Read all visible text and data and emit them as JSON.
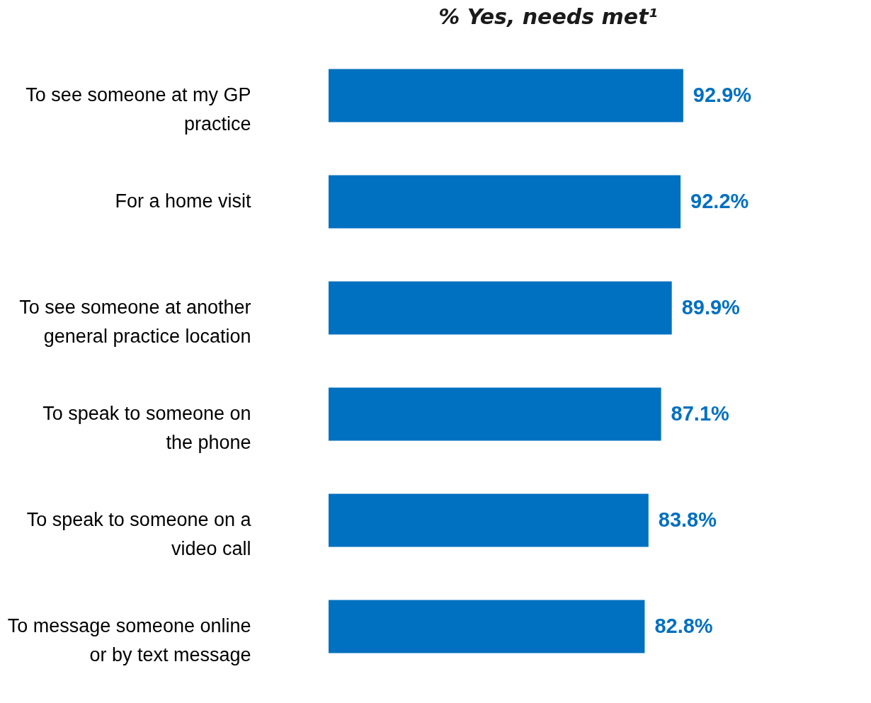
{
  "chart_data": {
    "type": "bar",
    "orientation": "horizontal",
    "title": "% Yes, needs met¹",
    "categories": [
      "To see someone at my GP\npractice",
      "For a home visit",
      "To see someone at another\ngeneral practice location",
      "To speak to someone on\nthe phone",
      "To speak to someone on a\nvideo call",
      "To message someone online\nor by text message"
    ],
    "values": [
      92.9,
      92.2,
      89.9,
      87.1,
      83.8,
      82.8
    ],
    "value_labels": [
      "92.9%",
      "92.2%",
      "89.9%",
      "87.1%",
      "83.8%",
      "82.8%"
    ],
    "color": "#0070c0",
    "xlim": [
      0,
      115
    ],
    "tick_labels": "y"
  }
}
